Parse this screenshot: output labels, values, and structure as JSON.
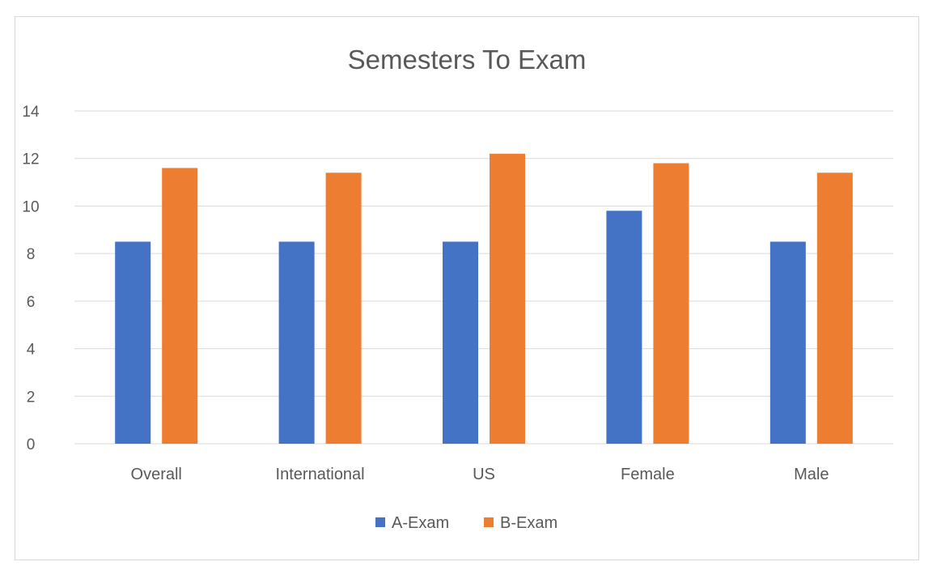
{
  "chart_data": {
    "type": "bar",
    "title": "Semesters To Exam",
    "categories": [
      "Overall",
      "International",
      "US",
      "Female",
      "Male"
    ],
    "series": [
      {
        "name": "A-Exam",
        "color": "#4472c4",
        "values": [
          8.5,
          8.5,
          8.5,
          9.8,
          8.5
        ]
      },
      {
        "name": "B-Exam",
        "color": "#ed7d31",
        "values": [
          11.6,
          11.4,
          12.2,
          11.8,
          11.4
        ]
      }
    ],
    "ylim": [
      0,
      14
    ],
    "yticks": [
      "0",
      "2",
      "4",
      "6",
      "8",
      "10",
      "12",
      "14"
    ],
    "grid": true,
    "legend": "bottom"
  }
}
